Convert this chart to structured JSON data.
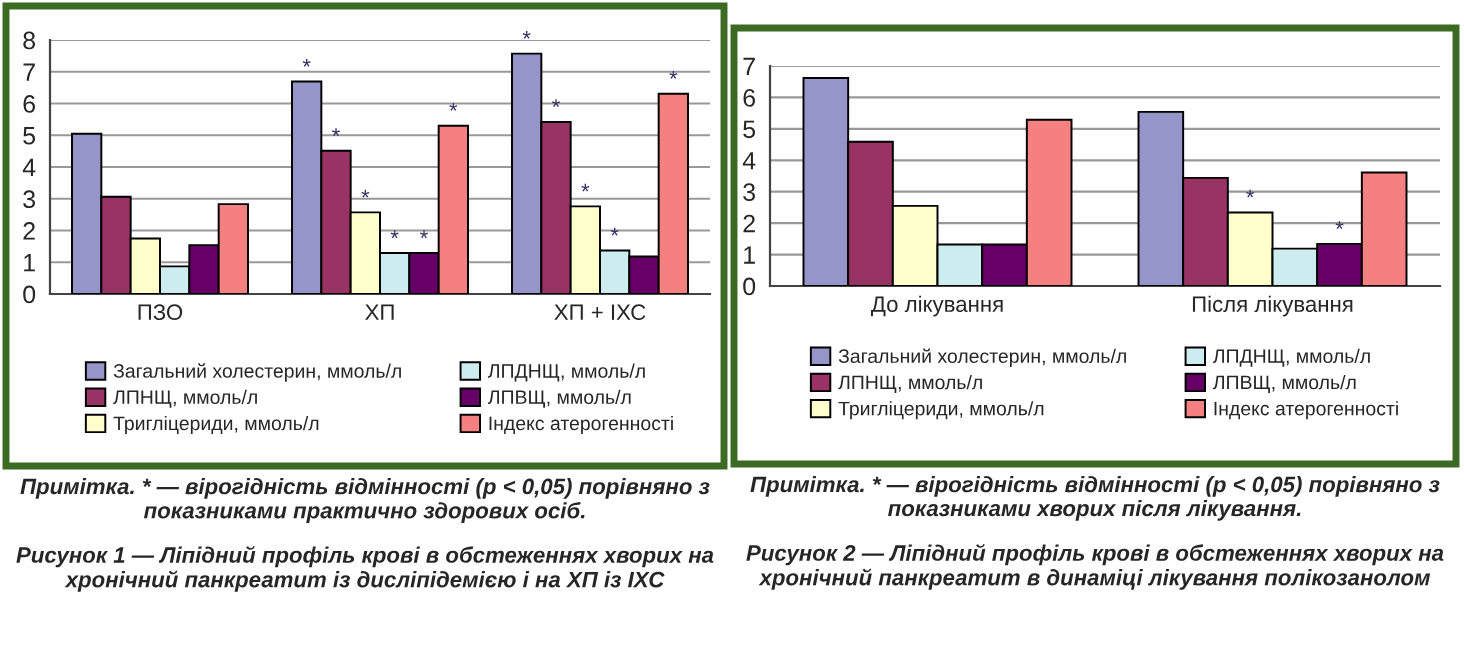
{
  "chart_data": [
    {
      "type": "bar",
      "categories": [
        "ПЗО",
        "ХП",
        "ХП + ІХС"
      ],
      "ylim": [
        0,
        8
      ],
      "yticks": [
        0,
        1,
        2,
        3,
        4,
        5,
        6,
        7,
        8
      ],
      "grid": "y",
      "legend": "bottom",
      "series": [
        {
          "name": "Загальний холестерин, ммоль/л",
          "color": "#9595c9",
          "values": [
            5.05,
            6.69,
            7.57
          ],
          "value_labels": [
            null,
            "*",
            "*"
          ]
        },
        {
          "name": "ЛПНЩ, ммоль/л",
          "color": "#993366",
          "values": [
            3.06,
            4.51,
            5.42
          ],
          "value_labels": [
            null,
            "*",
            "*"
          ]
        },
        {
          "name": "Тригліцериди, ммоль/л",
          "color": "#ffffcc",
          "values": [
            1.75,
            2.57,
            2.76
          ],
          "value_labels": [
            null,
            "*",
            "*"
          ]
        },
        {
          "name": "ЛПДНЩ, ммоль/л",
          "color": "#ccecf0",
          "values": [
            0.87,
            1.29,
            1.37
          ],
          "value_labels": [
            null,
            "*",
            "*"
          ]
        },
        {
          "name": "ЛПВЩ, ммоль/л",
          "color": "#660066",
          "values": [
            1.54,
            1.29,
            1.18
          ],
          "value_labels": [
            null,
            "*",
            null
          ]
        },
        {
          "name": "Індекс атерогенності",
          "color": "#f58080",
          "values": [
            2.83,
            5.3,
            6.31
          ],
          "value_labels": [
            null,
            "*",
            "*"
          ]
        }
      ],
      "annotations": [
        "Примітка. * — вірогідність відмінності (p < 0,05) порівняно з показниками практично здорових осіб.",
        "Рисунок 1 — Ліпідний профіль крові в обстеженнях хворих на хронічний панкреатит із дисліпідемією і на ХП із ІХС"
      ]
    },
    {
      "type": "bar",
      "categories": [
        "До лікування",
        "Після лікування"
      ],
      "ylim": [
        0,
        7
      ],
      "yticks": [
        0,
        1,
        2,
        3,
        4,
        5,
        6,
        7
      ],
      "grid": "y",
      "legend": "bottom",
      "series": [
        {
          "name": "Загальний холестерин, ммоль/л",
          "color": "#9595c9",
          "values": [
            6.62,
            5.54
          ],
          "value_labels": [
            null,
            null
          ]
        },
        {
          "name": "ЛПНЩ, ммоль/л",
          "color": "#993366",
          "values": [
            4.59,
            3.44
          ],
          "value_labels": [
            null,
            null
          ]
        },
        {
          "name": "Тригліцериди, ммоль/л",
          "color": "#ffffcc",
          "values": [
            2.55,
            2.34
          ],
          "value_labels": [
            null,
            "*"
          ]
        },
        {
          "name": "ЛПДНЩ, ммоль/л",
          "color": "#ccecf0",
          "values": [
            1.32,
            1.19
          ],
          "value_labels": [
            null,
            null
          ]
        },
        {
          "name": "ЛПВЩ, ммоль/л",
          "color": "#660066",
          "values": [
            1.32,
            1.34
          ],
          "value_labels": [
            null,
            "*"
          ]
        },
        {
          "name": "Індекс атерогенності",
          "color": "#f58080",
          "values": [
            5.29,
            3.61
          ],
          "value_labels": [
            null,
            null
          ]
        }
      ],
      "annotations": [
        "Примітка. * — вірогідність відмінності (p < 0,05) порівняно з показниками хворих після лікування.",
        "Рисунок 2 — Ліпідний профіль крові в обстеженнях хворих на хронічний панкреатит в динаміці лікування полікозанолом"
      ]
    }
  ]
}
